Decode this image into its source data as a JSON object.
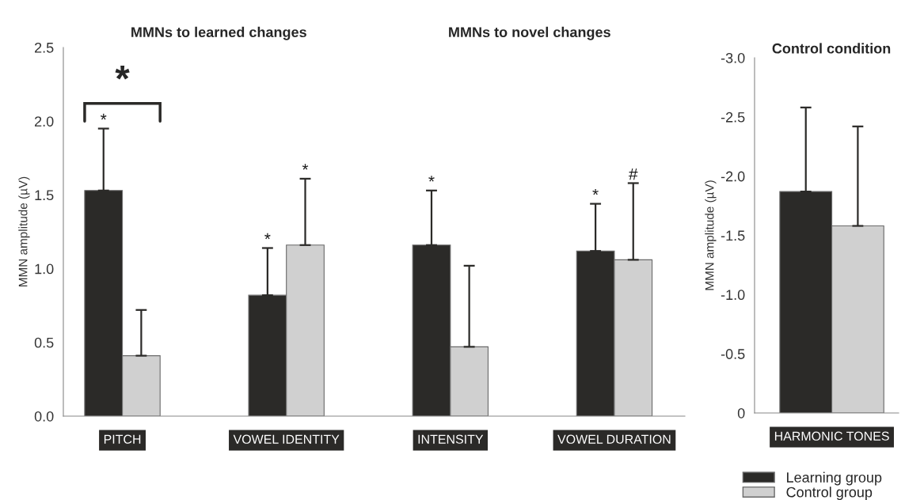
{
  "chart_data": [
    {
      "type": "bar",
      "ylabel": "MMN amplitude (µV)",
      "categories": [
        "PITCH",
        "VOWEL IDENTITY",
        "INTENSITY",
        "VOWEL DURATION"
      ],
      "series": [
        {
          "color": "#2b2a28",
          "values": [
            1.53,
            0.82,
            1.16,
            1.12
          ],
          "errors": [
            [
              1.53,
              1.95
            ],
            [
              0.82,
              1.14
            ],
            [
              1.16,
              1.53
            ],
            [
              1.12,
              1.44
            ]
          ]
        },
        {
          "color": "#d0d0d0",
          "values": [
            0.41,
            1.16,
            0.47,
            1.06
          ],
          "errors": [
            [
              0.41,
              0.72
            ],
            [
              1.16,
              1.61
            ],
            [
              0.47,
              1.02
            ],
            [
              1.06,
              1.58
            ]
          ]
        }
      ],
      "ylim": [
        0,
        2.5
      ],
      "yticks": [
        {
          "value": 0,
          "label": "0.0"
        },
        0.5,
        {
          "value": 1,
          "label": "1.0"
        },
        1.5,
        {
          "value": 2,
          "label": "2.0"
        },
        2.5
      ],
      "annotations": [
        "MMNs to learned changes",
        "MMNs to novel changes",
        "*",
        "*",
        "*",
        "*",
        "*",
        "#",
        "*"
      ]
    },
    {
      "type": "bar",
      "title": "Control condition",
      "ylabel": "MMN amplitude (µV)",
      "categories": [
        "HARMONIC TONES"
      ],
      "series": [
        {
          "name": "Learning group",
          "color": "#2b2a28",
          "values": [
            -1.87
          ],
          "errors": [
            [
              -2.58,
              -1.87
            ]
          ]
        },
        {
          "name": "Control group",
          "color": "#d0d0d0",
          "values": [
            -1.58
          ],
          "errors": [
            [
              -2.42,
              -1.58
            ]
          ]
        }
      ],
      "ylim": [
        0,
        -3.0
      ],
      "yticks": [
        0,
        -0.5,
        {
          "value": -1,
          "label": "-1.0"
        },
        -1.5,
        {
          "value": -2,
          "label": "-2.0"
        },
        -2.5,
        {
          "value": -3,
          "label": "-3.0"
        }
      ],
      "legend": "bottom"
    }
  ]
}
